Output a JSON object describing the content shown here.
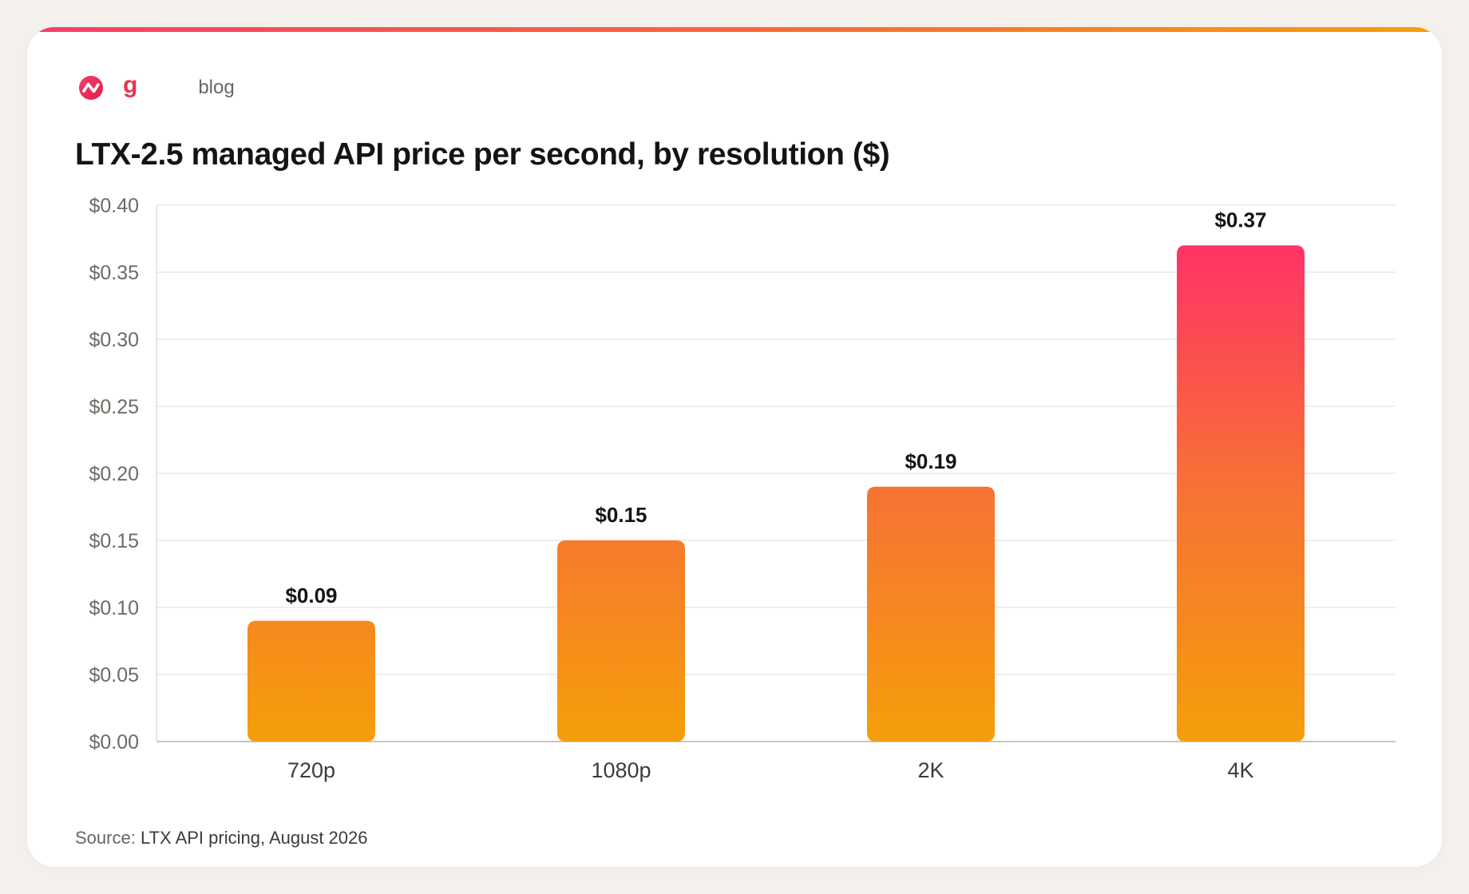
{
  "brand": {
    "logo_icon": "brand-logo-icon",
    "mark": "g",
    "section": "blog"
  },
  "colors": {
    "accent_pink": "#f43f6b",
    "accent_orange": "#f7673a",
    "accent_amber": "#f59e0b",
    "background": "#f4f1ec"
  },
  "chart_data": {
    "type": "bar",
    "title": "LTX-2.5 managed API price per second, by resolution ($)",
    "categories": [
      "720p",
      "1080p",
      "2K",
      "4K"
    ],
    "values": [
      0.09,
      0.15,
      0.19,
      0.37
    ],
    "value_labels": [
      "$0.09",
      "$0.15",
      "$0.19",
      "$0.37"
    ],
    "ylim": [
      0,
      0.4
    ],
    "yticks": [
      0,
      0.05,
      0.1,
      0.15,
      0.2,
      0.25,
      0.3,
      0.35,
      0.4
    ],
    "ytick_labels": [
      "$0.00",
      "$0.05",
      "$0.10",
      "$0.15",
      "$0.20",
      "$0.25",
      "$0.30",
      "$0.35",
      "$0.40"
    ],
    "xlabel": "",
    "ylabel": "",
    "grid": true
  },
  "source": {
    "label": "Source:",
    "value": "LTX API pricing, August 2026"
  }
}
